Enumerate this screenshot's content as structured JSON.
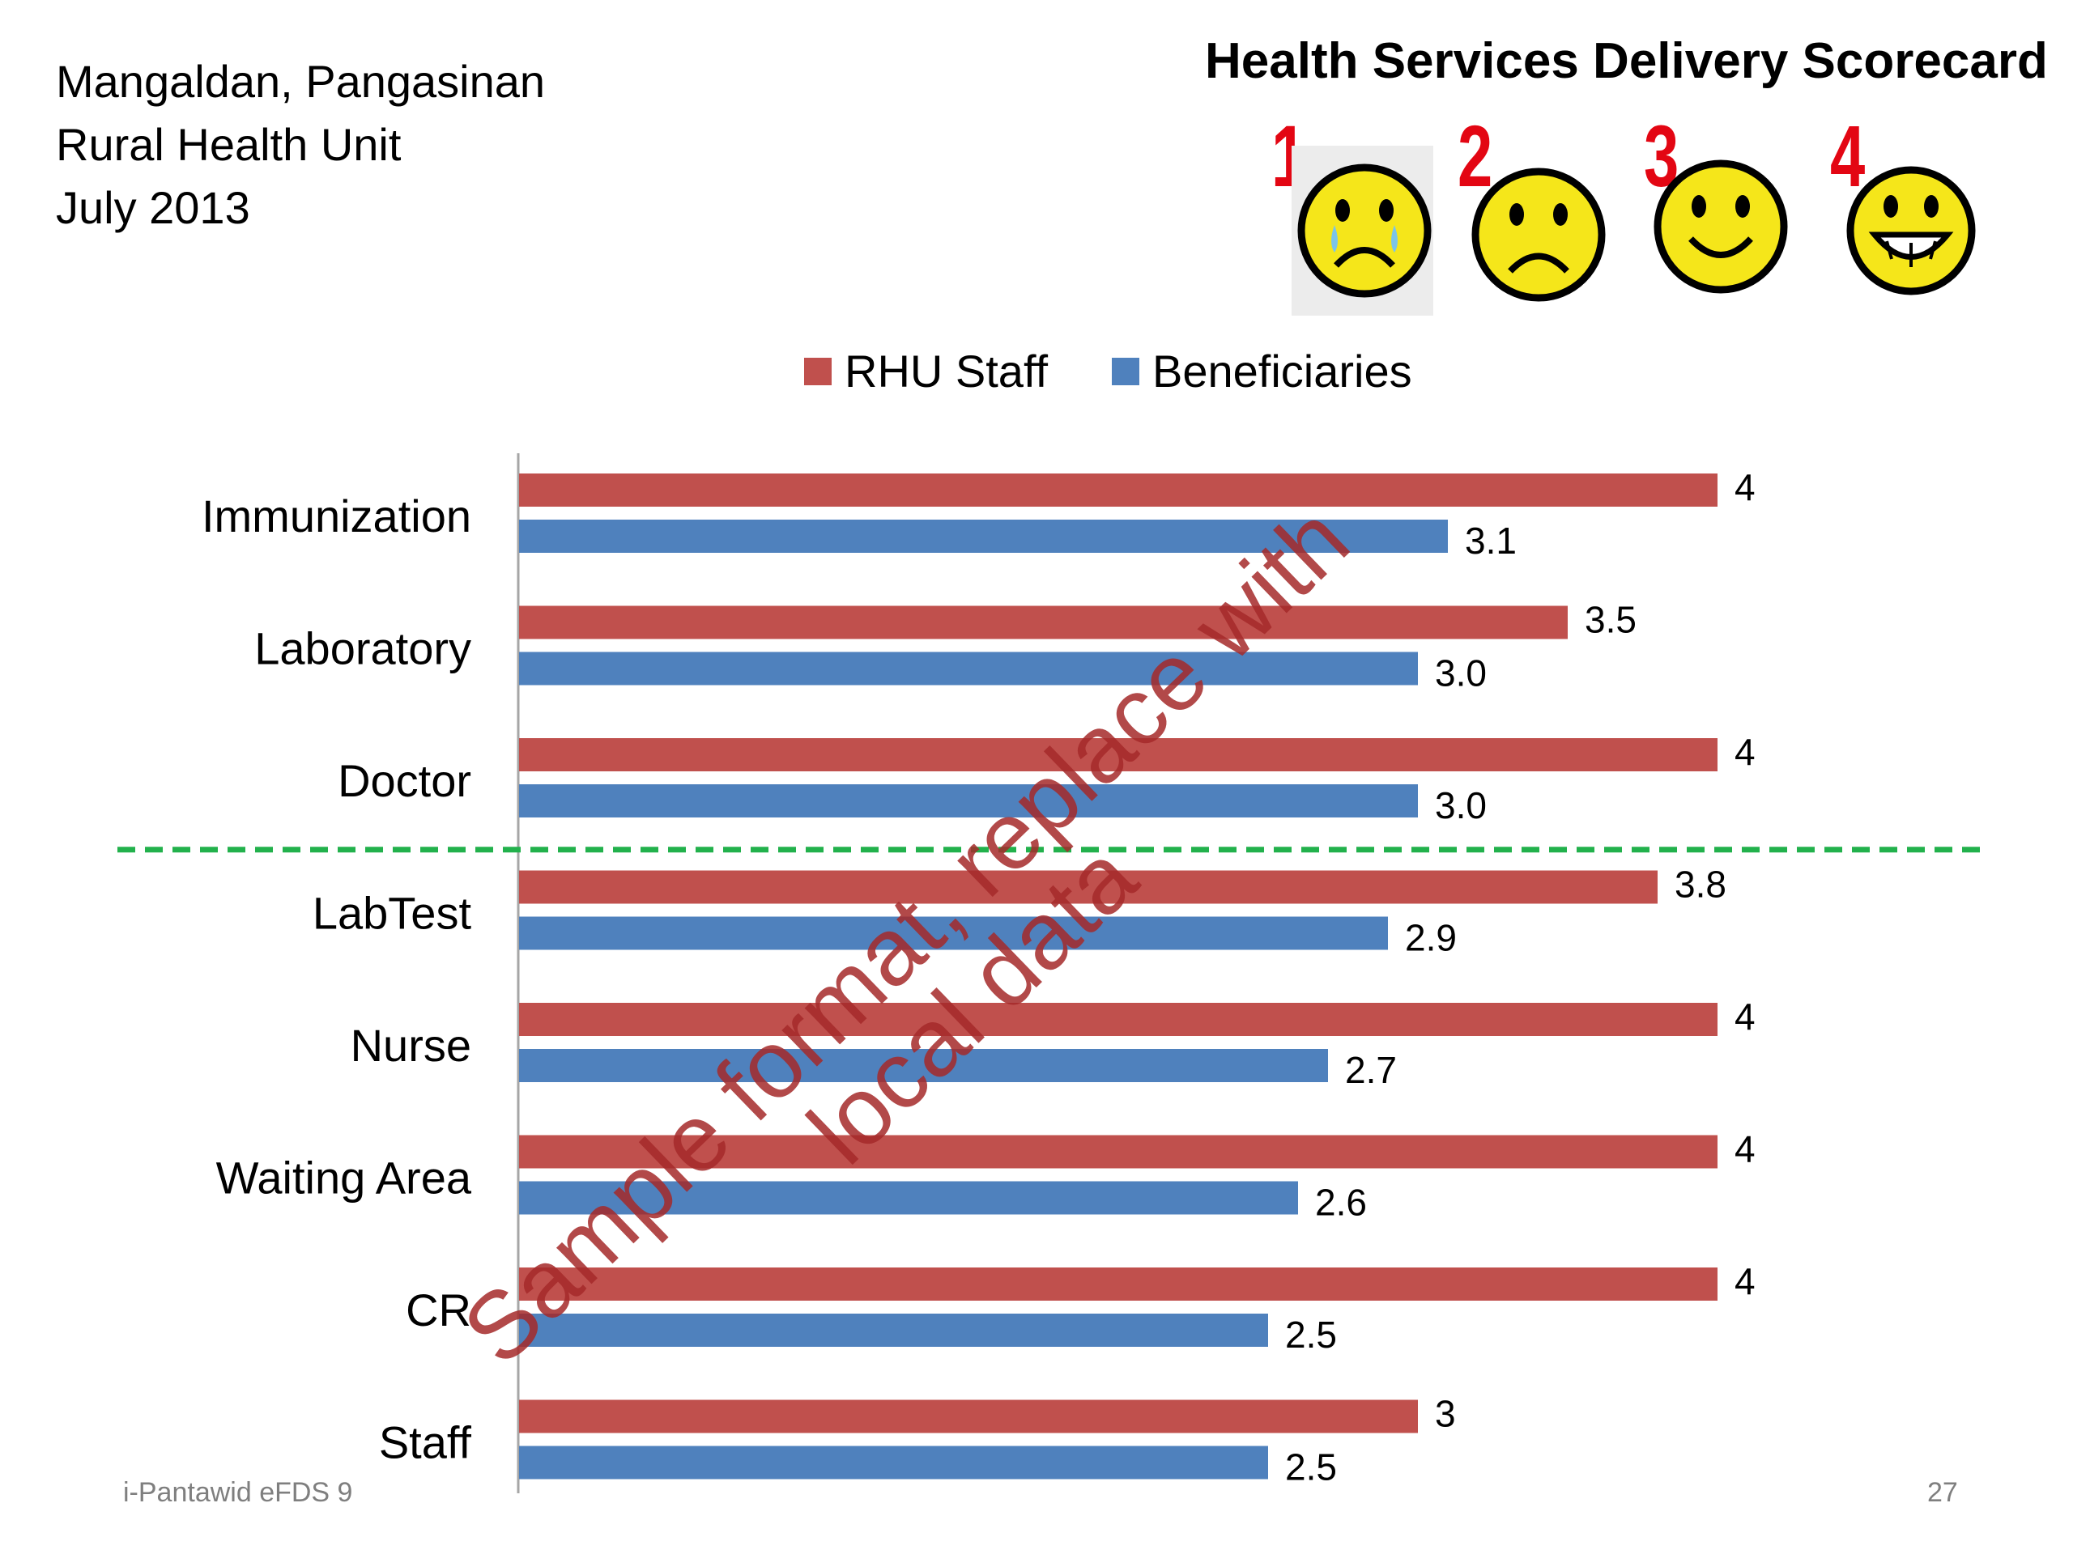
{
  "header": {
    "location": "Mangaldan, Pangasinan",
    "unit": "Rural Health Unit",
    "date": "July 2013"
  },
  "scorecard": {
    "title": "Health Services Delivery Scorecard",
    "faces": [
      {
        "number": "1",
        "icon": "crying-face-icon"
      },
      {
        "number": "2",
        "icon": "sad-face-icon"
      },
      {
        "number": "3",
        "icon": "smiling-face-icon"
      },
      {
        "number": "4",
        "icon": "grinning-face-icon"
      }
    ]
  },
  "watermark": "Sample format, replace with local data",
  "footer": {
    "left": "i-Pantawid eFDS 9",
    "page": "27"
  },
  "colors": {
    "rhu_staff": "#c0504d",
    "beneficiaries": "#4f81bd",
    "divider": "#22b14c",
    "watermark": "#a52a2a",
    "face_fill": "#f5e61a",
    "face_number": "#e30613"
  },
  "chart_data": {
    "type": "bar",
    "orientation": "horizontal",
    "title": "",
    "xlabel": "",
    "ylabel": "",
    "xlim": [
      0,
      4
    ],
    "grid": false,
    "legend": "top-center",
    "categories": [
      "Immunization",
      "Laboratory",
      "Doctor",
      "LabTest",
      "Nurse",
      "Waiting Area",
      "CR",
      "Staff"
    ],
    "series": [
      {
        "name": "RHU Staff",
        "color": "#c0504d",
        "values": [
          4,
          3.5,
          4,
          3.8,
          4,
          4,
          4,
          3
        ],
        "labels": [
          "4",
          "3.5",
          "4",
          "3.8",
          "4",
          "4",
          "4",
          "3"
        ]
      },
      {
        "name": "Beneficiaries",
        "color": "#4f81bd",
        "values": [
          3.1,
          3.0,
          3.0,
          2.9,
          2.7,
          2.6,
          2.5,
          2.5
        ],
        "labels": [
          "3.1",
          "3.0",
          "3.0",
          "2.9",
          "2.7",
          "2.6",
          "2.5",
          "2.5"
        ]
      }
    ],
    "divider_after_category": "Doctor"
  }
}
